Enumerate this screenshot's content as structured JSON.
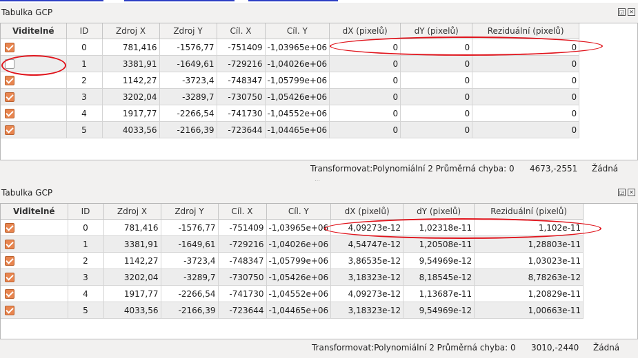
{
  "panel_top": {
    "title": "Tabulka GCP",
    "columns": [
      "Viditelné",
      "ID",
      "Zdroj X",
      "Zdroj Y",
      "Cíl. X",
      "Cíl. Y",
      "dX (pixelů)",
      "dY (pixelů)",
      "Reziduální (pixelů)"
    ],
    "rows": [
      {
        "visible": true,
        "id": "0",
        "zx": "781,416",
        "zy": "-1576,77",
        "cx": "-751409",
        "cy": "-1,03965e+06",
        "dx": "0",
        "dy": "0",
        "res": "0"
      },
      {
        "visible": false,
        "id": "1",
        "zx": "3381,91",
        "zy": "-1649,61",
        "cx": "-729216",
        "cy": "-1,04026e+06",
        "dx": "0",
        "dy": "0",
        "res": "0"
      },
      {
        "visible": true,
        "id": "2",
        "zx": "1142,27",
        "zy": "-3723,4",
        "cx": "-748347",
        "cy": "-1,05799e+06",
        "dx": "0",
        "dy": "0",
        "res": "0"
      },
      {
        "visible": true,
        "id": "3",
        "zx": "3202,04",
        "zy": "-3289,7",
        "cx": "-730750",
        "cy": "-1,05426e+06",
        "dx": "0",
        "dy": "0",
        "res": "0"
      },
      {
        "visible": true,
        "id": "4",
        "zx": "1917,77",
        "zy": "-2266,54",
        "cx": "-741730",
        "cy": "-1,04552e+06",
        "dx": "0",
        "dy": "0",
        "res": "0"
      },
      {
        "visible": true,
        "id": "5",
        "zx": "4033,56",
        "zy": "-2166,39",
        "cx": "-723644",
        "cy": "-1,04465e+06",
        "dx": "0",
        "dy": "0",
        "res": "0"
      }
    ],
    "status": {
      "transform": "Transformovat:Polynomiální 2 Průměrná chyba: 0",
      "coords": "4673,-2551",
      "crs": "Žádná"
    }
  },
  "panel_bottom": {
    "title": "Tabulka GCP",
    "columns": [
      "Viditelné",
      "ID",
      "Zdroj X",
      "Zdroj Y",
      "Cíl. X",
      "Cíl. Y",
      "dX (pixelů)",
      "dY (pixelů)",
      "Reziduální (pixelů)"
    ],
    "rows": [
      {
        "visible": true,
        "id": "0",
        "zx": "781,416",
        "zy": "-1576,77",
        "cx": "-751409",
        "cy": "-1,03965e+06",
        "dx": "4,09273e-12",
        "dy": "1,02318e-11",
        "res": "1,102e-11"
      },
      {
        "visible": true,
        "id": "1",
        "zx": "3381,91",
        "zy": "-1649,61",
        "cx": "-729216",
        "cy": "-1,04026e+06",
        "dx": "4,54747e-12",
        "dy": "1,20508e-11",
        "res": "1,28803e-11"
      },
      {
        "visible": true,
        "id": "2",
        "zx": "1142,27",
        "zy": "-3723,4",
        "cx": "-748347",
        "cy": "-1,05799e+06",
        "dx": "3,86535e-12",
        "dy": "9,54969e-12",
        "res": "1,03023e-11"
      },
      {
        "visible": true,
        "id": "3",
        "zx": "3202,04",
        "zy": "-3289,7",
        "cx": "-730750",
        "cy": "-1,05426e+06",
        "dx": "3,18323e-12",
        "dy": "8,18545e-12",
        "res": "8,78263e-12"
      },
      {
        "visible": true,
        "id": "4",
        "zx": "1917,77",
        "zy": "-2266,54",
        "cx": "-741730",
        "cy": "-1,04552e+06",
        "dx": "4,09273e-12",
        "dy": "1,13687e-11",
        "res": "1,20829e-11"
      },
      {
        "visible": true,
        "id": "5",
        "zx": "4033,56",
        "zy": "-2166,39",
        "cx": "-723644",
        "cy": "-1,04465e+06",
        "dx": "3,18323e-12",
        "dy": "9,54969e-12",
        "res": "1,00663e-11"
      }
    ],
    "status": {
      "transform": "Transformovat:Polynomiální 2 Průměrná chyba: 0",
      "coords": "3010,-2440",
      "crs": "Žádná"
    }
  },
  "colors": {
    "checkbox": "#e8854f",
    "annotation": "#e0141c"
  },
  "icons": {
    "float": "float-icon",
    "close": "close-icon"
  }
}
